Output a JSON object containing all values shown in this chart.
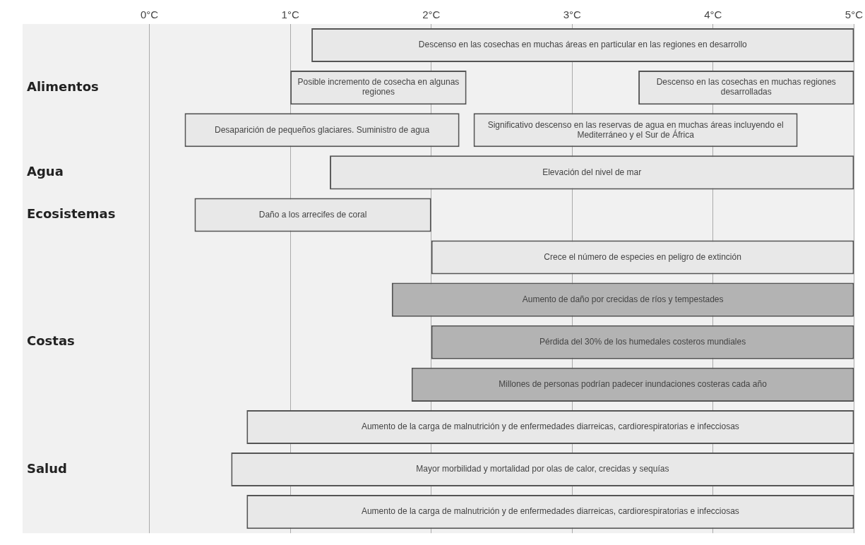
{
  "chart_data": {
    "type": "bar",
    "orientation": "horizontal",
    "categories": [
      null,
      "Alimentos",
      null,
      "Agua",
      "Ecosistemas",
      null,
      null,
      "Costas",
      null,
      null,
      "Salud",
      null
    ],
    "series": [
      {
        "values": [
          3.85,
          1.25,
          1.95,
          3.72,
          1.68,
          3.0,
          3.28,
          3.0,
          3.14,
          4.31,
          4.42,
          4.31
        ],
        "base": [
          1.15,
          1.0,
          0.25,
          1.28,
          0.32,
          2.0,
          1.72,
          2.0,
          1.86,
          0.69,
          0.58,
          0.69
        ],
        "colors": [
          "#e8e8e8",
          "#e8e8e8",
          "#e8e8e8",
          "#e8e8e8",
          "#e8e8e8",
          "#e8e8e8",
          "#b3b3b3",
          "#b3b3b3",
          "#b3b3b3",
          "#e8e8e8",
          "#e8e8e8",
          "#e8e8e8"
        ],
        "value_labels": [
          "Descenso en las cosechas en muchas áreas en particular en las regiones en desarrollo",
          "Posible incremento de cosecha en algunas regiones",
          "Desaparición de pequeños glaciares. Suministro de agua",
          "Elevación del nivel de mar",
          "Daño a los arrecifes de coral",
          "Crece el número de especies en peligro de extinción",
          "Aumento de daño por crecidas de ríos y tempestades",
          "Pérdida del 30% de los humedales costeros mundiales",
          "Millones de personas podrían padecer inundaciones costeras cada año",
          "Aumento de la carga de malnutrición y de enfermedades diarreicas, cardiorespiratorias e infecciosas",
          "Mayor morbilidad y mortalidad por olas de calor, crecidas y sequías",
          "Aumento de la carga de malnutrición y de enfermedades diarreicas, cardiorespiratorias e infecciosas"
        ]
      },
      {
        "values": [
          null,
          1.53,
          2.3,
          null,
          null,
          null,
          null,
          null,
          null,
          null,
          null,
          null
        ],
        "base": [
          null,
          3.47,
          2.3,
          null,
          null,
          null,
          null,
          null,
          null,
          null,
          null,
          null
        ],
        "colors": [
          "#e8e8e8",
          "#e8e8e8",
          "#e8e8e8",
          "#e8e8e8",
          "#e8e8e8",
          "#e8e8e8",
          "#e8e8e8",
          "#e8e8e8",
          "#e8e8e8",
          "#e8e8e8",
          "#e8e8e8",
          "#e8e8e8"
        ],
        "value_labels": [
          null,
          "Descenso en las cosechas en muchas regiones desarrolladas",
          "Significativo descenso en las reservas de agua en muchas áreas incluyendo el Mediterráneo y el Sur de África",
          null,
          null,
          null,
          null,
          null,
          null,
          null,
          null,
          null
        ]
      }
    ],
    "xlim": [
      -0.9,
      5
    ],
    "xticks": [
      {
        "value": 0,
        "label": "0°C"
      },
      {
        "value": 1,
        "label": "1°C"
      },
      {
        "value": 2,
        "label": "2°C"
      },
      {
        "value": 3,
        "label": "3°C"
      },
      {
        "value": 4,
        "label": "4°C"
      },
      {
        "value": 5,
        "label": "5°C"
      }
    ],
    "grid": "x",
    "legend": false
  }
}
